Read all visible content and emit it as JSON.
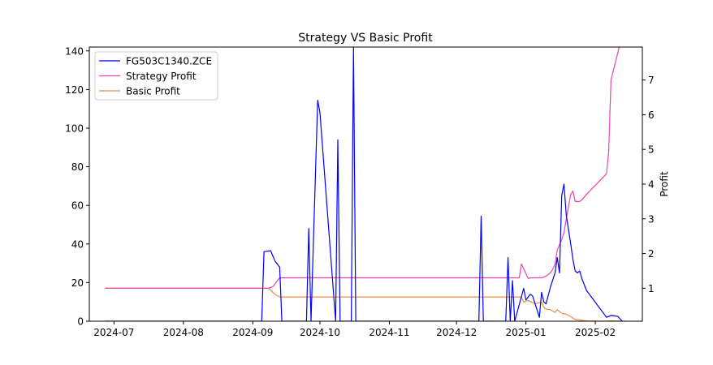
{
  "chart_data": {
    "type": "line",
    "title": "Strategy VS Basic Profit",
    "xlabel": "",
    "ylabel_left": "",
    "ylabel_right": "Profit",
    "x_range": [
      "2024-06-20",
      "2025-02-22"
    ],
    "x_ticks": [
      "2024-07-01",
      "2024-08-01",
      "2024-09-01",
      "2024-10-01",
      "2024-11-01",
      "2024-12-01",
      "2025-01-01",
      "2025-02-01"
    ],
    "x_tick_labels": [
      "2024-07",
      "2024-08",
      "2024-09",
      "2024-10",
      "2024-11",
      "2024-12",
      "2025-01",
      "2025-02"
    ],
    "ylim_left": [
      0,
      142
    ],
    "yticks_left": [
      0,
      20,
      40,
      60,
      80,
      100,
      120,
      140
    ],
    "ylim_right": [
      0.05,
      7.95
    ],
    "yticks_right": [
      1,
      2,
      3,
      4,
      5,
      6,
      7
    ],
    "grid": false,
    "legend_position": "top-left",
    "series": [
      {
        "name": "FG503C1340.ZCE",
        "axis": "left",
        "color": "#0000ff",
        "points": [
          [
            "2024-06-27",
            0
          ],
          [
            "2024-09-05",
            0
          ],
          [
            "2024-09-06",
            36
          ],
          [
            "2024-09-09",
            36.5
          ],
          [
            "2024-09-11",
            31
          ],
          [
            "2024-09-13",
            28
          ],
          [
            "2024-09-14",
            0
          ],
          [
            "2024-09-25",
            0
          ],
          [
            "2024-09-26",
            48
          ],
          [
            "2024-09-27",
            0
          ],
          [
            "2024-09-30",
            114.5
          ],
          [
            "2024-10-01",
            108
          ],
          [
            "2024-10-08",
            0
          ],
          [
            "2024-10-09",
            94
          ],
          [
            "2024-10-10",
            0
          ],
          [
            "2024-10-15",
            0
          ],
          [
            "2024-10-16",
            142
          ],
          [
            "2024-10-17",
            0
          ],
          [
            "2024-12-11",
            0
          ],
          [
            "2024-12-12",
            54.5
          ],
          [
            "2024-12-13",
            0
          ],
          [
            "2024-12-23",
            0
          ],
          [
            "2024-12-24",
            33
          ],
          [
            "2024-12-25",
            0
          ],
          [
            "2024-12-26",
            21
          ],
          [
            "2024-12-27",
            0
          ],
          [
            "2024-12-31",
            17
          ],
          [
            "2025-01-01",
            11
          ],
          [
            "2025-01-03",
            14
          ],
          [
            "2025-01-04",
            13
          ],
          [
            "2025-01-07",
            2
          ],
          [
            "2025-01-08",
            15
          ],
          [
            "2025-01-09",
            10
          ],
          [
            "2025-01-10",
            9
          ],
          [
            "2025-01-12",
            18
          ],
          [
            "2025-01-14",
            25
          ],
          [
            "2025-01-15",
            33
          ],
          [
            "2025-01-16",
            25
          ],
          [
            "2025-01-17",
            65
          ],
          [
            "2025-01-18",
            71
          ],
          [
            "2025-01-19",
            55
          ],
          [
            "2025-01-21",
            40
          ],
          [
            "2025-01-22",
            32
          ],
          [
            "2025-01-23",
            26
          ],
          [
            "2025-01-24",
            25
          ],
          [
            "2025-01-25",
            26
          ],
          [
            "2025-01-26",
            22
          ],
          [
            "2025-01-28",
            16
          ],
          [
            "2025-02-06",
            2
          ],
          [
            "2025-02-08",
            3
          ],
          [
            "2025-02-11",
            2.5
          ],
          [
            "2025-02-13",
            0
          ],
          [
            "2025-02-14",
            0
          ]
        ]
      },
      {
        "name": "Strategy Profit",
        "axis": "right",
        "color": "#ee44aa",
        "points": [
          [
            "2024-06-27",
            1.0
          ],
          [
            "2024-09-08",
            1.0
          ],
          [
            "2024-09-10",
            1.05
          ],
          [
            "2024-09-13",
            1.3
          ],
          [
            "2024-12-29",
            1.3
          ],
          [
            "2024-12-30",
            1.7
          ],
          [
            "2025-01-02",
            1.28
          ],
          [
            "2025-01-03",
            1.3
          ],
          [
            "2025-01-05",
            1.3
          ],
          [
            "2025-01-08",
            1.3
          ],
          [
            "2025-01-10",
            1.35
          ],
          [
            "2025-01-12",
            1.45
          ],
          [
            "2025-01-13",
            1.55
          ],
          [
            "2025-01-14",
            1.7
          ],
          [
            "2025-01-15",
            2.1
          ],
          [
            "2025-01-17",
            2.4
          ],
          [
            "2025-01-18",
            2.6
          ],
          [
            "2025-01-19",
            3.0
          ],
          [
            "2025-01-21",
            3.7
          ],
          [
            "2025-01-22",
            3.8
          ],
          [
            "2025-01-23",
            3.5
          ],
          [
            "2025-01-25",
            3.5
          ],
          [
            "2025-01-26",
            3.55
          ],
          [
            "2025-01-28",
            3.7
          ],
          [
            "2025-02-06",
            4.3
          ],
          [
            "2025-02-07",
            4.95
          ],
          [
            "2025-02-08",
            7.0
          ],
          [
            "2025-02-13",
            8.3
          ]
        ]
      },
      {
        "name": "Basic Profit",
        "axis": "right",
        "color": "#f08a40",
        "points": [
          [
            "2024-06-27",
            1.0
          ],
          [
            "2024-09-08",
            1.0
          ],
          [
            "2024-09-11",
            0.82
          ],
          [
            "2024-09-13",
            0.75
          ],
          [
            "2024-12-30",
            0.75
          ],
          [
            "2024-12-31",
            0.6
          ],
          [
            "2025-01-02",
            0.65
          ],
          [
            "2025-01-05",
            0.55
          ],
          [
            "2025-01-08",
            0.6
          ],
          [
            "2025-01-09",
            0.45
          ],
          [
            "2025-01-10",
            0.4
          ],
          [
            "2025-01-12",
            0.38
          ],
          [
            "2025-01-14",
            0.3
          ],
          [
            "2025-01-15",
            0.38
          ],
          [
            "2025-01-17",
            0.28
          ],
          [
            "2025-01-19",
            0.25
          ],
          [
            "2025-01-21",
            0.18
          ],
          [
            "2025-01-23",
            0.1
          ],
          [
            "2025-01-28",
            0.06
          ],
          [
            "2025-02-05",
            0.05
          ],
          [
            "2025-02-08",
            0.06
          ],
          [
            "2025-02-13",
            0.05
          ]
        ]
      }
    ]
  }
}
